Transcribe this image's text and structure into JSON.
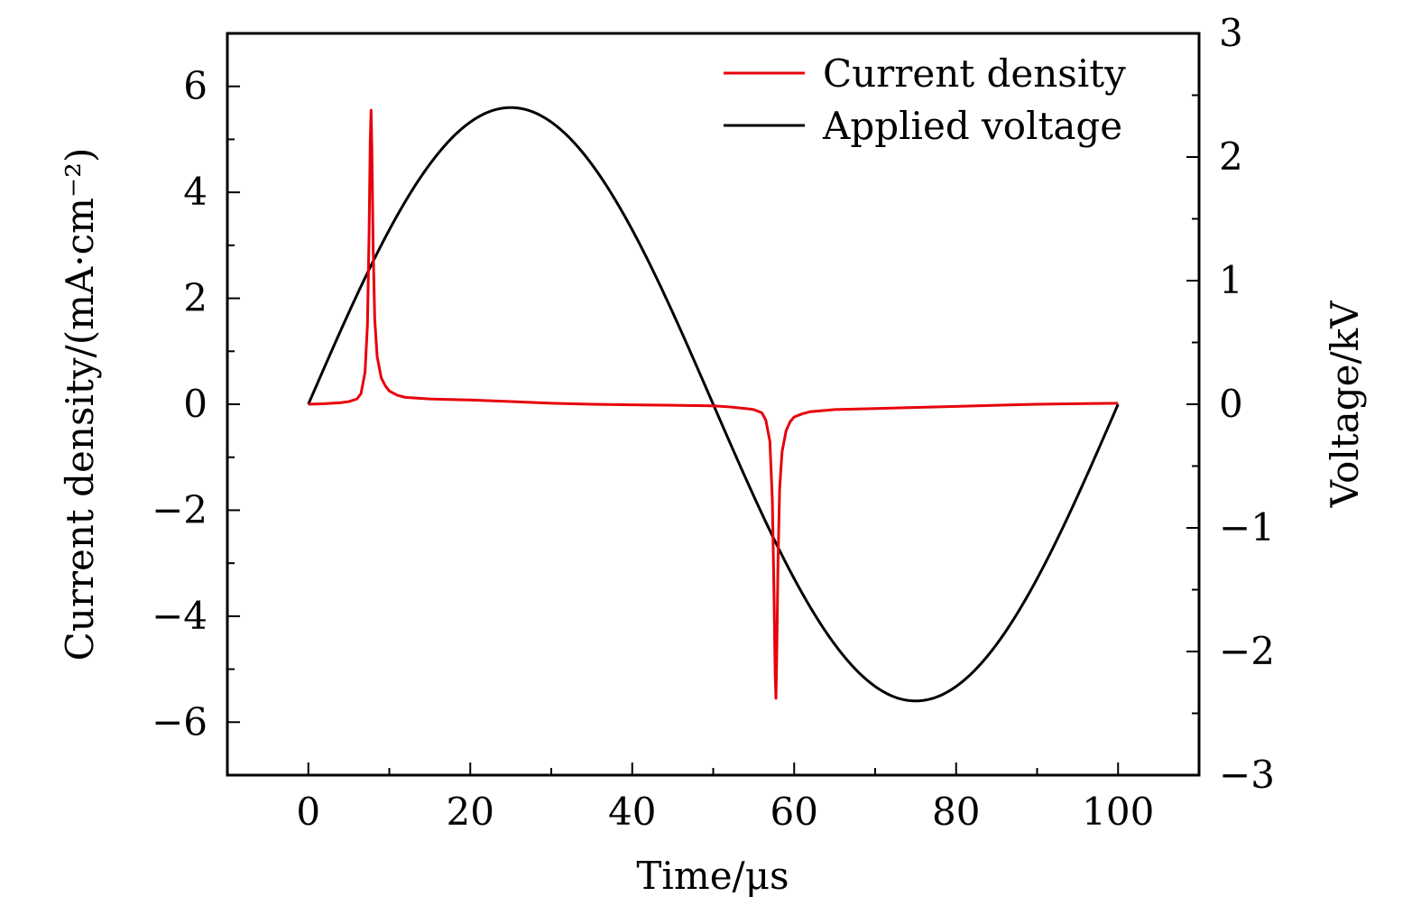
{
  "chart_data": {
    "type": "line",
    "title": "",
    "xlabel": "Time/μs",
    "ylabel": "Current density/(mA·cm⁻²)",
    "y2label": "Voltage/kV",
    "xlim": [
      -10,
      110
    ],
    "ylim": [
      -7,
      7
    ],
    "y2lim": [
      -3,
      3
    ],
    "x_ticks": [
      "0",
      "20",
      "40",
      "60",
      "80",
      "100"
    ],
    "y_ticks": [
      "−6",
      "−4",
      "−2",
      "0",
      "2",
      "4",
      "6"
    ],
    "y2_ticks": [
      "−3",
      "−2",
      "−1",
      "0",
      "1",
      "2",
      "3"
    ],
    "grid": false,
    "legend_position": "top-right",
    "series": [
      {
        "name": "Current density",
        "axis": "left",
        "color": "#e8000b",
        "x": [
          0,
          2,
          4,
          5,
          6,
          6.5,
          7,
          7.3,
          7.5,
          7.65,
          7.75,
          7.85,
          8.0,
          8.2,
          8.5,
          9,
          9.5,
          10,
          11,
          12,
          15,
          20,
          25,
          30,
          35,
          40,
          45,
          50,
          52,
          54,
          55,
          56,
          56.5,
          57,
          57.3,
          57.5,
          57.65,
          57.75,
          57.85,
          58.0,
          58.2,
          58.5,
          59,
          59.5,
          60,
          61,
          62,
          65,
          70,
          75,
          80,
          85,
          90,
          95,
          100
        ],
        "y": [
          0,
          0.01,
          0.03,
          0.05,
          0.1,
          0.2,
          0.6,
          1.5,
          3.2,
          5.0,
          5.55,
          4.8,
          3.0,
          1.6,
          0.9,
          0.5,
          0.35,
          0.25,
          0.17,
          0.13,
          0.1,
          0.08,
          0.05,
          0.02,
          0,
          -0.01,
          -0.02,
          -0.03,
          -0.05,
          -0.08,
          -0.1,
          -0.16,
          -0.3,
          -0.7,
          -1.8,
          -3.5,
          -5.1,
          -5.55,
          -4.7,
          -3.0,
          -1.6,
          -0.9,
          -0.5,
          -0.33,
          -0.24,
          -0.18,
          -0.14,
          -0.1,
          -0.08,
          -0.06,
          -0.04,
          -0.02,
          0,
          0.01,
          0.02
        ]
      },
      {
        "name": "Applied voltage",
        "axis": "right",
        "color": "#000000",
        "function": "sine",
        "amplitude_kV": 2.4,
        "period_us": 100,
        "x_range": [
          0,
          100
        ]
      }
    ]
  }
}
